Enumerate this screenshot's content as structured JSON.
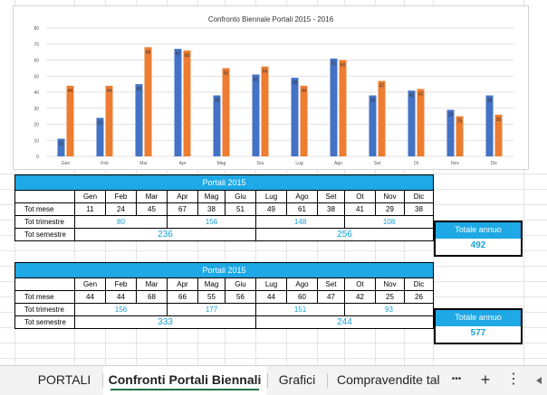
{
  "chart_data": {
    "type": "bar",
    "title": "Confronto Biennale Portali  2015 - 2016",
    "categories": [
      "Gen",
      "Feb",
      "Mar",
      "Apr",
      "Mag",
      "Giu",
      "Lug",
      "Ago",
      "Set",
      "Ot",
      "Nov",
      "Dic"
    ],
    "series": [
      {
        "values": [
          11,
          24,
          45,
          67,
          38,
          51,
          49,
          61,
          38,
          41,
          29,
          38
        ],
        "color": "#4472c4"
      },
      {
        "values": [
          44,
          44,
          68,
          66,
          55,
          56,
          44,
          60,
          47,
          42,
          25,
          26
        ],
        "color": "#ed7d31"
      }
    ],
    "ylim": [
      0,
      80
    ],
    "yticks": [
      "0",
      "10",
      "20",
      "30",
      "40",
      "50",
      "60",
      "70",
      "80"
    ],
    "grid": true
  },
  "table1": {
    "title": "Portali 2015",
    "months": [
      "Gen",
      "Feb",
      "Mar",
      "Apr",
      "Mag",
      "Giu",
      "Lug",
      "Ago",
      "Set",
      "Ot",
      "Nov",
      "Dic"
    ],
    "tot_mese_label": "Tot mese",
    "tot_mese": [
      "11",
      "24",
      "45",
      "67",
      "38",
      "51",
      "49",
      "61",
      "38",
      "41",
      "29",
      "38"
    ],
    "tot_trimestre_label": "Tot trimestre",
    "tot_trimestre": [
      "80",
      "156",
      "148",
      "108"
    ],
    "tot_semestre_label": "Tot semestre",
    "tot_semestre": [
      "236",
      "256"
    ],
    "totale_annuo_label": "Totale annuo",
    "totale_annuo": "492"
  },
  "table2": {
    "title": "Portali 2015",
    "months": [
      "Gen",
      "Feb",
      "Mar",
      "Apr",
      "Mag",
      "Giu",
      "Lug",
      "Ago",
      "Set",
      "Ot",
      "Nov",
      "Dic"
    ],
    "tot_mese_label": "Tot mese",
    "tot_mese": [
      "44",
      "44",
      "68",
      "66",
      "55",
      "56",
      "44",
      "60",
      "47",
      "42",
      "25",
      "26"
    ],
    "tot_trimestre_label": "Tot trimestre",
    "tot_trimestre": [
      "156",
      "177",
      "151",
      "93"
    ],
    "tot_semestre_label": "Tot semestre",
    "tot_semestre": [
      "333",
      "244"
    ],
    "totale_annuo_label": "Totale annuo",
    "totale_annuo": "577"
  },
  "tabs": {
    "items": [
      "PORTALI",
      "Confronti Portali Biennali",
      "Grafici",
      "Compravendite tal"
    ],
    "active_index": 1,
    "more_label": "•••",
    "add_label": "+",
    "options_label": "⋮",
    "icons": [
      "more-icon",
      "add-sheet-icon",
      "options-icon",
      "scroll-left-icon"
    ]
  }
}
